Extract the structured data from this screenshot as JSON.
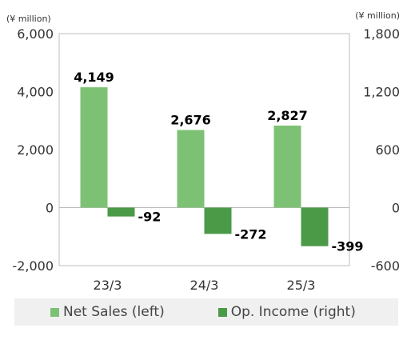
{
  "chart_data": {
    "type": "bar",
    "categories": [
      "23/3",
      "24/3",
      "25/3"
    ],
    "series": [
      {
        "name": "Net Sales (left)",
        "axis": "left",
        "values": [
          4149,
          2676,
          2827
        ],
        "labels": [
          "4,149",
          "2,676",
          "2,827"
        ],
        "color": "#7dc274"
      },
      {
        "name": "Op. Income (right)",
        "axis": "right",
        "values": [
          -92,
          -272,
          -399
        ],
        "labels": [
          "-92",
          "-272",
          "-399"
        ],
        "color": "#4a9a48"
      }
    ],
    "left_axis": {
      "unit": "(¥ million)",
      "ylim": [
        -2000,
        6000
      ],
      "ticks": [
        6000,
        4000,
        2000,
        0,
        -2000
      ],
      "tick_labels": [
        "6,000",
        "4,000",
        "2,000",
        "0",
        "-2,000"
      ]
    },
    "right_axis": {
      "unit": "(¥ million)",
      "ylim": [
        -600,
        1800
      ],
      "ticks": [
        1800,
        1200,
        600,
        0,
        -600
      ],
      "tick_labels": [
        "1,800",
        "1,200",
        "600",
        "0",
        "-600"
      ]
    },
    "grid": false,
    "legend_position": "bottom"
  }
}
